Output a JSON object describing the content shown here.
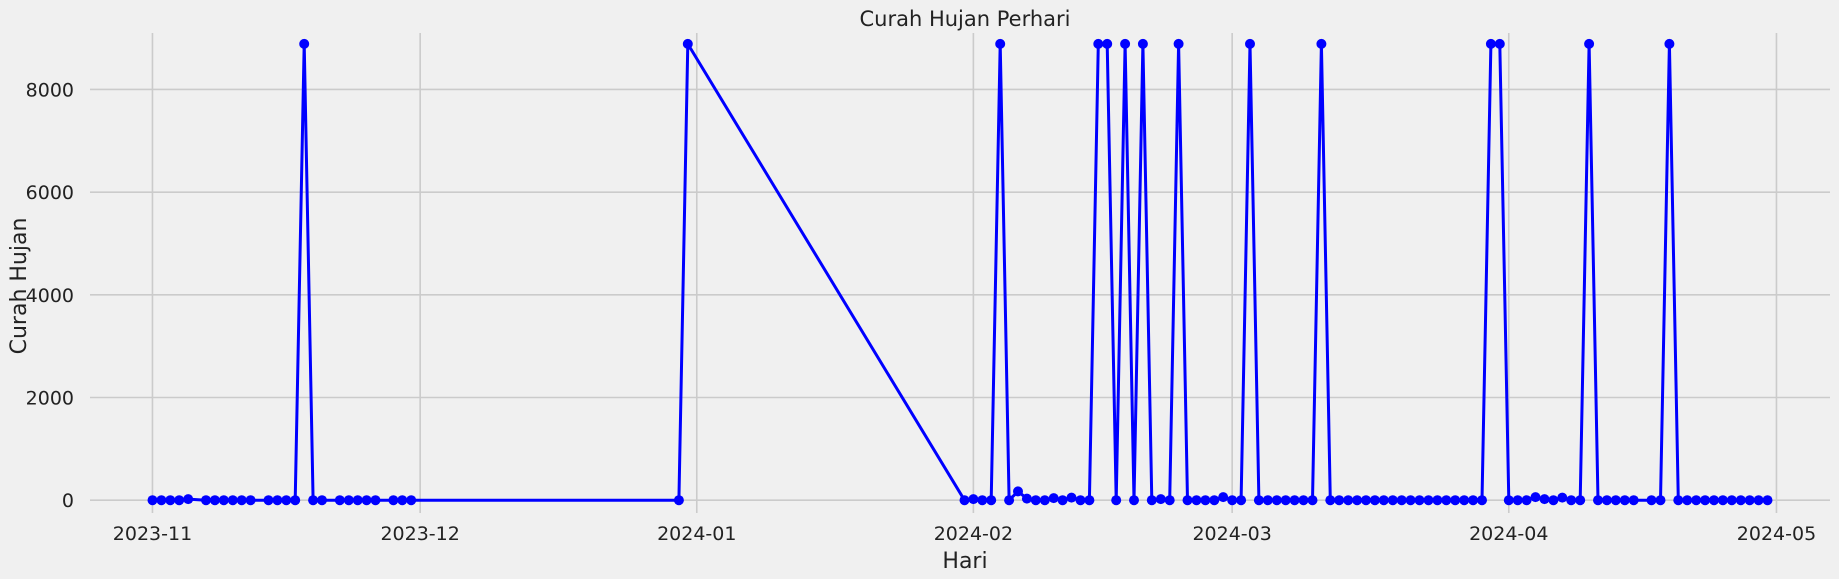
{
  "chart_data": {
    "type": "line",
    "title": "Curah Hujan Perhari",
    "xlabel": "Hari",
    "ylabel": "Curah Hujan",
    "xlim": [
      "2023-10-25",
      "2024-05-07"
    ],
    "ylim": [
      -250,
      9100
    ],
    "x_ticks": [
      "2023-11-01",
      "2023-12-01",
      "2024-01-01",
      "2024-02-01",
      "2024-03-01",
      "2024-04-01",
      "2024-05-01"
    ],
    "x_tick_labels": [
      "2023-11",
      "2023-12",
      "2024-01",
      "2024-02",
      "2024-03",
      "2024-04",
      "2024-05"
    ],
    "y_ticks": [
      0,
      2000,
      4000,
      6000,
      8000
    ],
    "y_tick_labels": [
      "0",
      "2000",
      "4000",
      "6000",
      "8000"
    ],
    "grid": true,
    "legend": "none",
    "series": [
      {
        "color": "#0000ff",
        "marker": "circle",
        "points": [
          [
            "2023-11-01",
            0
          ],
          [
            "2023-11-02",
            0
          ],
          [
            "2023-11-03",
            0
          ],
          [
            "2023-11-04",
            0
          ],
          [
            "2023-11-05",
            20
          ],
          [
            "2023-11-07",
            0
          ],
          [
            "2023-11-08",
            0
          ],
          [
            "2023-11-09",
            0
          ],
          [
            "2023-11-10",
            0
          ],
          [
            "2023-11-11",
            0
          ],
          [
            "2023-11-12",
            0
          ],
          [
            "2023-11-14",
            0
          ],
          [
            "2023-11-15",
            0
          ],
          [
            "2023-11-16",
            0
          ],
          [
            "2023-11-17",
            0
          ],
          [
            "2023-11-18",
            8888
          ],
          [
            "2023-11-19",
            0
          ],
          [
            "2023-11-20",
            0
          ],
          [
            "2023-11-22",
            0
          ],
          [
            "2023-11-23",
            0
          ],
          [
            "2023-11-24",
            0
          ],
          [
            "2023-11-25",
            0
          ],
          [
            "2023-11-26",
            0
          ],
          [
            "2023-11-28",
            0
          ],
          [
            "2023-11-29",
            0
          ],
          [
            "2023-11-30",
            0
          ],
          [
            "2023-12-30",
            0
          ],
          [
            "2023-12-31",
            8888
          ],
          [
            "2024-01-31",
            0
          ],
          [
            "2024-02-01",
            20
          ],
          [
            "2024-02-02",
            0
          ],
          [
            "2024-02-03",
            0
          ],
          [
            "2024-02-04",
            8888
          ],
          [
            "2024-02-05",
            0
          ],
          [
            "2024-02-06",
            170
          ],
          [
            "2024-02-07",
            30
          ],
          [
            "2024-02-08",
            0
          ],
          [
            "2024-02-09",
            0
          ],
          [
            "2024-02-10",
            40
          ],
          [
            "2024-02-11",
            0
          ],
          [
            "2024-02-12",
            50
          ],
          [
            "2024-02-13",
            0
          ],
          [
            "2024-02-14",
            0
          ],
          [
            "2024-02-15",
            8888
          ],
          [
            "2024-02-16",
            8888
          ],
          [
            "2024-02-17",
            0
          ],
          [
            "2024-02-18",
            8888
          ],
          [
            "2024-02-19",
            0
          ],
          [
            "2024-02-20",
            8888
          ],
          [
            "2024-02-21",
            0
          ],
          [
            "2024-02-22",
            20
          ],
          [
            "2024-02-23",
            0
          ],
          [
            "2024-02-24",
            8888
          ],
          [
            "2024-02-25",
            0
          ],
          [
            "2024-02-26",
            0
          ],
          [
            "2024-02-27",
            0
          ],
          [
            "2024-02-28",
            0
          ],
          [
            "2024-02-29",
            60
          ],
          [
            "2024-03-01",
            0
          ],
          [
            "2024-03-02",
            0
          ],
          [
            "2024-03-03",
            8888
          ],
          [
            "2024-03-04",
            0
          ],
          [
            "2024-03-05",
            0
          ],
          [
            "2024-03-06",
            0
          ],
          [
            "2024-03-07",
            0
          ],
          [
            "2024-03-08",
            0
          ],
          [
            "2024-03-09",
            0
          ],
          [
            "2024-03-10",
            0
          ],
          [
            "2024-03-11",
            8888
          ],
          [
            "2024-03-12",
            0
          ],
          [
            "2024-03-13",
            0
          ],
          [
            "2024-03-14",
            0
          ],
          [
            "2024-03-15",
            0
          ],
          [
            "2024-03-16",
            0
          ],
          [
            "2024-03-17",
            0
          ],
          [
            "2024-03-18",
            0
          ],
          [
            "2024-03-19",
            0
          ],
          [
            "2024-03-20",
            0
          ],
          [
            "2024-03-21",
            0
          ],
          [
            "2024-03-22",
            0
          ],
          [
            "2024-03-23",
            0
          ],
          [
            "2024-03-24",
            0
          ],
          [
            "2024-03-25",
            0
          ],
          [
            "2024-03-26",
            0
          ],
          [
            "2024-03-27",
            0
          ],
          [
            "2024-03-28",
            0
          ],
          [
            "2024-03-29",
            0
          ],
          [
            "2024-03-30",
            8888
          ],
          [
            "2024-03-31",
            8888
          ],
          [
            "2024-04-01",
            0
          ],
          [
            "2024-04-02",
            0
          ],
          [
            "2024-04-03",
            0
          ],
          [
            "2024-04-04",
            60
          ],
          [
            "2024-04-05",
            20
          ],
          [
            "2024-04-06",
            0
          ],
          [
            "2024-04-07",
            50
          ],
          [
            "2024-04-08",
            0
          ],
          [
            "2024-04-09",
            0
          ],
          [
            "2024-04-10",
            8888
          ],
          [
            "2024-04-11",
            0
          ],
          [
            "2024-04-12",
            0
          ],
          [
            "2024-04-13",
            0
          ],
          [
            "2024-04-14",
            0
          ],
          [
            "2024-04-15",
            0
          ],
          [
            "2024-04-17",
            0
          ],
          [
            "2024-04-18",
            0
          ],
          [
            "2024-04-19",
            8888
          ],
          [
            "2024-04-20",
            0
          ],
          [
            "2024-04-21",
            0
          ],
          [
            "2024-04-22",
            0
          ],
          [
            "2024-04-23",
            0
          ],
          [
            "2024-04-24",
            0
          ],
          [
            "2024-04-25",
            0
          ],
          [
            "2024-04-26",
            0
          ],
          [
            "2024-04-27",
            0
          ],
          [
            "2024-04-28",
            0
          ],
          [
            "2024-04-29",
            0
          ],
          [
            "2024-04-30",
            0
          ]
        ]
      }
    ]
  }
}
